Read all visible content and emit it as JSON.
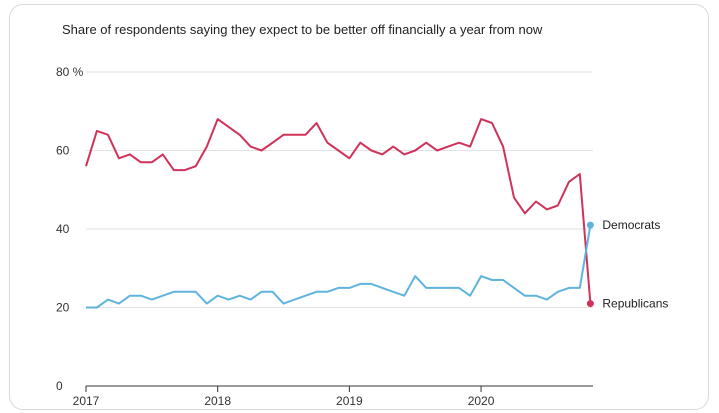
{
  "chart_data": {
    "type": "line",
    "title": "Share of respondents saying they expect to be better off financially a year from now",
    "xlabel": "",
    "ylabel": "",
    "xlim": [
      2017,
      2020.85
    ],
    "ylim": [
      0,
      80
    ],
    "y_ticks": [
      {
        "value": 0,
        "label": "0"
      },
      {
        "value": 20,
        "label": "20"
      },
      {
        "value": 40,
        "label": "40"
      },
      {
        "value": 60,
        "label": "60"
      },
      {
        "value": 80,
        "label": "80 %"
      }
    ],
    "x_ticks": [
      {
        "value": 2017,
        "label": "2017"
      },
      {
        "value": 2018,
        "label": "2018"
      },
      {
        "value": 2019,
        "label": "2019"
      },
      {
        "value": 2020,
        "label": "2020"
      }
    ],
    "grid": "horizontal",
    "legend": "direct labels at right end of lines",
    "series": [
      {
        "name": "Republicans",
        "color": "#d0325a",
        "x": [
          2017.0,
          2017.083,
          2017.167,
          2017.25,
          2017.333,
          2017.417,
          2017.5,
          2017.583,
          2017.667,
          2017.75,
          2017.833,
          2017.917,
          2018.0,
          2018.083,
          2018.167,
          2018.25,
          2018.333,
          2018.417,
          2018.5,
          2018.583,
          2018.667,
          2018.75,
          2018.833,
          2018.917,
          2019.0,
          2019.083,
          2019.167,
          2019.25,
          2019.333,
          2019.417,
          2019.5,
          2019.583,
          2019.667,
          2019.75,
          2019.833,
          2019.917,
          2020.0,
          2020.083,
          2020.167,
          2020.25,
          2020.333,
          2020.417,
          2020.5,
          2020.583,
          2020.667,
          2020.75,
          2020.83
        ],
        "values": [
          56,
          65,
          64,
          58,
          59,
          57,
          57,
          59,
          55,
          55,
          56,
          61,
          68,
          66,
          64,
          61,
          60,
          62,
          64,
          64,
          64,
          67,
          62,
          60,
          58,
          62,
          60,
          59,
          61,
          59,
          60,
          62,
          60,
          61,
          62,
          61,
          68,
          67,
          61,
          48,
          44,
          47,
          45,
          46,
          52,
          54,
          21
        ]
      },
      {
        "name": "Democrats",
        "color": "#5fb4de",
        "x": [
          2017.0,
          2017.083,
          2017.167,
          2017.25,
          2017.333,
          2017.417,
          2017.5,
          2017.583,
          2017.667,
          2017.75,
          2017.833,
          2017.917,
          2018.0,
          2018.083,
          2018.167,
          2018.25,
          2018.333,
          2018.417,
          2018.5,
          2018.583,
          2018.667,
          2018.75,
          2018.833,
          2018.917,
          2019.0,
          2019.083,
          2019.167,
          2019.25,
          2019.333,
          2019.417,
          2019.5,
          2019.583,
          2019.667,
          2019.75,
          2019.833,
          2019.917,
          2020.0,
          2020.083,
          2020.167,
          2020.25,
          2020.333,
          2020.417,
          2020.5,
          2020.583,
          2020.667,
          2020.75,
          2020.83
        ],
        "values": [
          20,
          20,
          22,
          21,
          23,
          23,
          22,
          23,
          24,
          24,
          24,
          21,
          23,
          22,
          23,
          22,
          24,
          24,
          21,
          22,
          23,
          24,
          24,
          25,
          25,
          26,
          26,
          25,
          24,
          23,
          28,
          25,
          25,
          25,
          25,
          23,
          28,
          27,
          27,
          25,
          23,
          23,
          22,
          24,
          25,
          25,
          41
        ]
      }
    ]
  }
}
